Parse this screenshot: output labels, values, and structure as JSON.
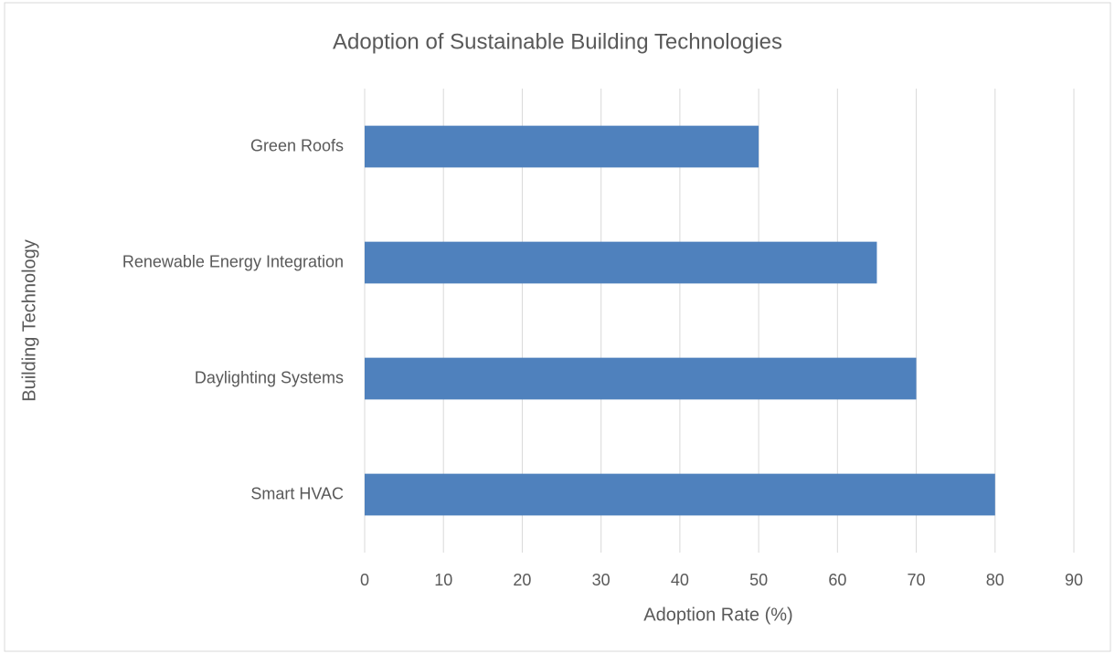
{
  "chart_data": {
    "type": "bar",
    "orientation": "horizontal",
    "title": "Adoption of Sustainable Building Technologies",
    "xlabel": "Adoption Rate (%)",
    "ylabel": "Building Technology",
    "categories": [
      "Smart HVAC",
      "Daylighting Systems",
      "Renewable Energy Integration",
      "Green Roofs"
    ],
    "values": [
      80,
      70,
      65,
      50
    ],
    "color": "#4f81bd",
    "xlim": [
      0,
      90
    ],
    "xticks": [
      0,
      10,
      20,
      30,
      40,
      50,
      60,
      70,
      80,
      90
    ],
    "grid": true
  }
}
